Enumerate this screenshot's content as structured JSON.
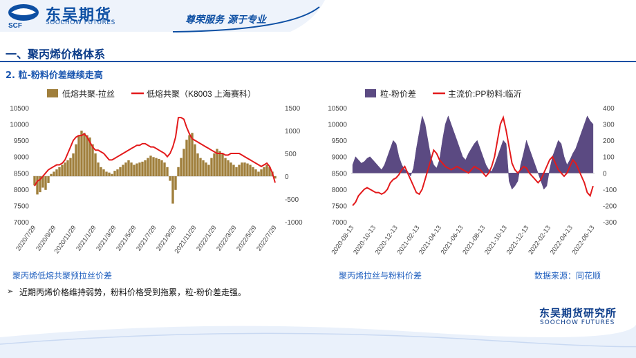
{
  "header": {
    "logo_cn": "东吴期货",
    "logo_en": "SOOCHOW FUTURES",
    "logo_mark": "SCF",
    "slogan": "尊荣服务 源于专业"
  },
  "section_title": "一、聚丙烯价格体系",
  "sub_title": "2. 粒-粉料价差继续走高",
  "captions": {
    "left": "聚丙烯低熔共聚预拉丝价差",
    "right": "聚丙烯拉丝与粉料价差",
    "source": "数据来源：同花顺"
  },
  "bullet": "近期丙烯价格维持弱势，粉料价格受到拖累，粒-粉价差走强。",
  "footer": {
    "logo_cn": "东吴期货研究所",
    "logo_en": "SOOCHOW FUTURES"
  },
  "colors": {
    "bar_left": "#a07f3c",
    "bar_right": "#5b4a82",
    "line": "#e31a1c",
    "brand": "#0d4fa3"
  },
  "chart_data": [
    {
      "type": "bar",
      "legend": [
        {
          "name": "低熔共聚-拉丝",
          "kind": "bar"
        },
        {
          "name": "低熔共聚（K8003 上海赛科）",
          "kind": "line"
        }
      ],
      "legend_position": "top",
      "x_ticks": [
        "2020/7/29",
        "2020/9/29",
        "2020/11/29",
        "2021/1/29",
        "2021/3/29",
        "2021/5/29",
        "2021/7/29",
        "2021/9/29",
        "2021/11/29",
        "2022/1/29",
        "2022/3/29",
        "2022/5/29",
        "2022/7/29"
      ],
      "y_left": {
        "ticks": [
          "7000",
          "7500",
          "8000",
          "8500",
          "9000",
          "9500",
          "10000",
          "10500"
        ],
        "range": [
          7000,
          10500
        ]
      },
      "y_right": {
        "ticks": [
          "-1000",
          "-500",
          "0",
          "500",
          "1000",
          "1500"
        ],
        "range": [
          -1000,
          1500
        ]
      },
      "series": [
        {
          "name": "低熔共聚-拉丝",
          "axis": "right",
          "values": [
            -200,
            -400,
            -350,
            -250,
            -300,
            -150,
            50,
            100,
            150,
            200,
            250,
            300,
            350,
            400,
            500,
            700,
            900,
            1000,
            950,
            900,
            850,
            700,
            500,
            300,
            200,
            150,
            100,
            80,
            50,
            120,
            150,
            200,
            250,
            300,
            350,
            300,
            250,
            280,
            300,
            320,
            350,
            400,
            450,
            420,
            400,
            380,
            350,
            300,
            200,
            -100,
            -600,
            -300,
            200,
            400,
            600,
            800,
            900,
            950,
            700,
            500,
            400,
            350,
            300,
            250,
            400,
            500,
            600,
            550,
            500,
            400,
            350,
            300,
            250,
            200,
            250,
            300,
            300,
            280,
            250,
            200,
            150,
            100,
            150,
            200,
            250,
            200,
            100,
            -50
          ]
        },
        {
          "name": "低熔共聚（K8003 上海赛科）",
          "axis": "left",
          "values": [
            8100,
            8250,
            8300,
            8400,
            8500,
            8600,
            8650,
            8700,
            8750,
            8750,
            8800,
            8900,
            9100,
            9300,
            9500,
            9600,
            9650,
            9650,
            9700,
            9600,
            9450,
            9300,
            9200,
            9200,
            9150,
            9100,
            9000,
            8900,
            8900,
            8950,
            9000,
            9050,
            9100,
            9150,
            9200,
            9250,
            9300,
            9350,
            9350,
            9400,
            9400,
            9350,
            9300,
            9300,
            9250,
            9200,
            9150,
            9100,
            9000,
            9100,
            9300,
            9600,
            10200,
            10200,
            10150,
            9900,
            9700,
            9550,
            9500,
            9450,
            9400,
            9350,
            9300,
            9250,
            9200,
            9150,
            9100,
            9100,
            9100,
            9050,
            9050,
            9100,
            9100,
            9100,
            9100,
            9050,
            9000,
            8950,
            8900,
            8850,
            8800,
            8750,
            8700,
            8750,
            8800,
            8700,
            8500,
            8200
          ]
        }
      ]
    },
    {
      "type": "area",
      "legend": [
        {
          "name": "粒-粉价差",
          "kind": "area"
        },
        {
          "name": "主流价:PP粉料:临沂",
          "kind": "line"
        }
      ],
      "legend_position": "top",
      "x_ticks": [
        "2020-08-13",
        "2020-10-13",
        "2020-12-13",
        "2021-02-13",
        "2021-04-13",
        "2021-06-13",
        "2021-08-13",
        "2021-10-13",
        "2021-12-13",
        "2022-02-13",
        "2022-04-13",
        "2022-06-13"
      ],
      "y_left": {
        "ticks": [
          "7000",
          "7500",
          "8000",
          "8500",
          "9000",
          "9500",
          "10000",
          "10500"
        ],
        "range": [
          7000,
          10500
        ]
      },
      "y_right": {
        "ticks": [
          "-300",
          "-200",
          "-100",
          "0",
          "100",
          "200",
          "300",
          "400"
        ],
        "range": [
          -300,
          400
        ]
      },
      "series": [
        {
          "name": "粒-粉价差",
          "axis": "right",
          "values": [
            50,
            100,
            80,
            60,
            70,
            90,
            100,
            80,
            60,
            40,
            20,
            50,
            100,
            150,
            200,
            180,
            100,
            50,
            20,
            10,
            -20,
            30,
            150,
            250,
            350,
            300,
            200,
            100,
            50,
            30,
            80,
            200,
            300,
            350,
            300,
            250,
            200,
            150,
            100,
            80,
            120,
            150,
            180,
            200,
            150,
            100,
            50,
            20,
            10,
            50,
            100,
            150,
            200,
            180,
            -50,
            -100,
            -80,
            -50,
            50,
            120,
            200,
            150,
            100,
            50,
            0,
            -50,
            -100,
            -80,
            20,
            100,
            150,
            200,
            180,
            100,
            50,
            80,
            120,
            150,
            200,
            250,
            300,
            350,
            320,
            300
          ]
        },
        {
          "name": "主流价:PP粉料:临沂",
          "axis": "left",
          "values": [
            7500,
            7600,
            7800,
            7900,
            8000,
            8050,
            8000,
            7950,
            7900,
            7900,
            7850,
            7900,
            8000,
            8200,
            8300,
            8350,
            8450,
            8600,
            8700,
            8500,
            8300,
            8100,
            7900,
            7850,
            8000,
            8300,
            8600,
            8900,
            9200,
            9100,
            8900,
            8800,
            8700,
            8650,
            8600,
            8650,
            8700,
            8650,
            8600,
            8550,
            8500,
            8600,
            8700,
            8650,
            8600,
            8500,
            8400,
            8500,
            8700,
            9000,
            9500,
            10000,
            10200,
            9800,
            9300,
            8800,
            8600,
            8500,
            8600,
            8700,
            8650,
            8500,
            8400,
            8300,
            8200,
            8300,
            8500,
            8700,
            8900,
            9000,
            8800,
            8600,
            8500,
            8400,
            8500,
            8700,
            8900,
            8800,
            8600,
            8400,
            8200,
            7900,
            7800,
            8100
          ]
        }
      ]
    }
  ]
}
